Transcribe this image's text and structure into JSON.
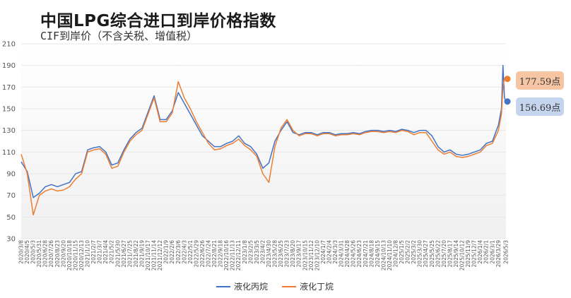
{
  "title": "中国LPG综合进口到岸价格指数",
  "subtitle": "CIF到岸价（不含关税、增值税）",
  "colors": {
    "propane": "#4472c4",
    "butane": "#ed7d31",
    "grid": "#e7e7e7"
  },
  "callouts": {
    "butane_value": "177.59点",
    "propane_value": "156.69点"
  },
  "chart_data": {
    "type": "line",
    "title": "中国LPG综合进口到岸价格指数",
    "subtitle": "CIF到岸价（不含关税、增值税）",
    "ylim": [
      30,
      210
    ],
    "yticks": [
      30,
      50,
      70,
      90,
      110,
      130,
      150,
      170,
      190,
      210
    ],
    "grid": true,
    "legend_position": "bottom",
    "xtick_labels": [
      "2020/3/8",
      "2020/4/5",
      "2020/5/3",
      "2020/5/31",
      "2020/6/28",
      "2020/7/26",
      "2020/8/23",
      "2020/9/20",
      "2020/10/18",
      "2020/11/15",
      "2020/12/13",
      "2021/1/10",
      "2021/2/7",
      "2021/3/7",
      "2021/4/4",
      "2021/5/2",
      "2021/5/30",
      "2021/6/27",
      "2021/7/25",
      "2021/8/22",
      "2021/9/19",
      "2021/10/17",
      "2021/11/14",
      "2021/12/12",
      "2022/1/9",
      "2022/2/6",
      "2022/3/6",
      "2022/4/3",
      "2022/5/1",
      "2022/5/29",
      "2022/6/26",
      "2022/7/24",
      "2022/8/21",
      "2022/9/18",
      "2022/10/16",
      "2022/11/13",
      "2022/12/11",
      "2023/1/8",
      "2023/2/5",
      "2023/3/5",
      "2023/4/2",
      "2023/4/30",
      "2023/5/28",
      "2023/6/25",
      "2023/7/23",
      "2023/8/20",
      "2023/9/17",
      "2023/10/15",
      "2023/11/12",
      "2023/12/10",
      "2024/1/7",
      "2024/2/4",
      "2024/3/3",
      "2024/3/31",
      "2024/4/28",
      "2024/5/26",
      "2024/6/23",
      "2024/7/21",
      "2024/8/18",
      "2024/9/15",
      "2024/10/13",
      "2024/11/10",
      "2024/12/8",
      "2025/1/5",
      "2025/2/2",
      "2025/3/2",
      "2025/3/30",
      "2025/4/27",
      "2025/5/25",
      "2025/6/22",
      "2025/7/20",
      "2025/8/17",
      "2025/9/14",
      "2025/10/12",
      "2025/11/9",
      "2025/12/7",
      "2026/1/4",
      "2026/2/1",
      "2026/3/1",
      "2026/3/29",
      "2026/5/3"
    ],
    "x": [
      "2020/3/8",
      "2020/4/5",
      "2020/5/3",
      "2020/5/31",
      "2020/6/28",
      "2020/7/26",
      "2020/8/23",
      "2020/9/20",
      "2020/10/18",
      "2020/11/15",
      "2020/12/13",
      "2021/1/10",
      "2021/2/7",
      "2021/3/7",
      "2021/4/4",
      "2021/5/2",
      "2021/5/30",
      "2021/6/27",
      "2021/7/25",
      "2021/8/22",
      "2021/9/19",
      "2021/10/17",
      "2021/11/14",
      "2021/12/12",
      "2022/1/9",
      "2022/2/6",
      "2022/3/6",
      "2022/4/3",
      "2022/5/1",
      "2022/5/29",
      "2022/6/26",
      "2022/7/24",
      "2022/8/21",
      "2022/9/18",
      "2022/10/16",
      "2022/11/13",
      "2022/12/11",
      "2023/1/8",
      "2023/2/5",
      "2023/3/5",
      "2023/4/2",
      "2023/4/30",
      "2023/5/28",
      "2023/6/25",
      "2023/7/23",
      "2023/8/20",
      "2023/9/17",
      "2023/10/15",
      "2023/11/12",
      "2023/12/10",
      "2024/1/7",
      "2024/2/4",
      "2024/3/3",
      "2024/3/31",
      "2024/4/28",
      "2024/5/26",
      "2024/6/23",
      "2024/7/21",
      "2024/8/18",
      "2024/9/15",
      "2024/10/13",
      "2024/11/10",
      "2024/12/8",
      "2025/1/5",
      "2025/2/2",
      "2025/3/2",
      "2025/3/30",
      "2025/4/27",
      "2025/5/25",
      "2025/6/22",
      "2025/7/20",
      "2025/8/17",
      "2025/9/14",
      "2025/10/12",
      "2025/11/9",
      "2025/12/7",
      "2026/1/4",
      "2026/2/1",
      "2026/3/1",
      "2026/3/29",
      "2026/4/12",
      "2026/4/19",
      "2026/4/26",
      "2026/5/3"
    ],
    "series": [
      {
        "name": "液化丙烷",
        "values": [
          101,
          92,
          68,
          72,
          78,
          80,
          78,
          80,
          82,
          90,
          92,
          112,
          114,
          115,
          110,
          98,
          100,
          112,
          122,
          128,
          132,
          147,
          162,
          140,
          140,
          148,
          165,
          155,
          145,
          135,
          125,
          120,
          115,
          115,
          118,
          120,
          125,
          118,
          115,
          108,
          95,
          100,
          120,
          130,
          138,
          128,
          126,
          128,
          128,
          126,
          128,
          128,
          126,
          127,
          127,
          128,
          127,
          129,
          130,
          130,
          129,
          130,
          129,
          131,
          130,
          128,
          130,
          130,
          125,
          115,
          110,
          112,
          108,
          107,
          108,
          110,
          112,
          118,
          120,
          135,
          150,
          190,
          160,
          156.69
        ]
      },
      {
        "name": "液化丁烷",
        "values": [
          108,
          90,
          52,
          70,
          74,
          76,
          74,
          75,
          78,
          85,
          90,
          110,
          112,
          113,
          108,
          95,
          97,
          110,
          120,
          126,
          130,
          145,
          160,
          138,
          138,
          146,
          175,
          160,
          150,
          138,
          128,
          118,
          112,
          113,
          116,
          118,
          122,
          116,
          112,
          106,
          90,
          82,
          115,
          132,
          140,
          130,
          125,
          127,
          127,
          125,
          127,
          127,
          125,
          126,
          126,
          127,
          126,
          128,
          129,
          129,
          128,
          129,
          128,
          130,
          129,
          126,
          128,
          128,
          120,
          112,
          108,
          110,
          106,
          105,
          106,
          108,
          110,
          116,
          118,
          130,
          145,
          170,
          178,
          177.59
        ]
      }
    ]
  },
  "legend": {
    "propane": "液化丙烷",
    "butane": "液化丁烷"
  }
}
